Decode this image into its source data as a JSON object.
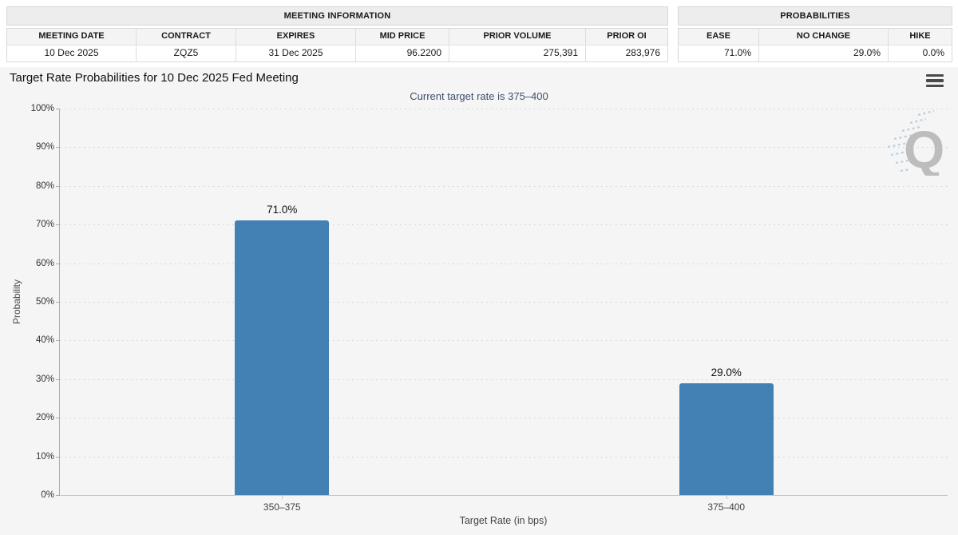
{
  "meeting_info": {
    "title": "MEETING INFORMATION",
    "columns": [
      "MEETING DATE",
      "CONTRACT",
      "EXPIRES",
      "MID PRICE",
      "PRIOR VOLUME",
      "PRIOR OI"
    ],
    "values": [
      "10 Dec 2025",
      "ZQZ5",
      "31 Dec 2025",
      "96.2200",
      "275,391",
      "283,976"
    ]
  },
  "probabilities": {
    "title": "PROBABILITIES",
    "columns": [
      "EASE",
      "NO CHANGE",
      "HIKE"
    ],
    "values": [
      "71.0%",
      "29.0%",
      "0.0%"
    ]
  },
  "chart_header": {
    "title": "Target Rate Probabilities for 10 Dec 2025 Fed Meeting",
    "subtitle": "Current target rate is 375–400",
    "menu_icon": "hamburger-icon",
    "watermark_letter": "Q"
  },
  "chart_data": {
    "type": "bar",
    "categories": [
      "350–375",
      "375–400"
    ],
    "values": [
      71.0,
      29.0
    ],
    "value_labels": [
      "71.0%",
      "29.0%"
    ],
    "title": "Target Rate Probabilities for 10 Dec 2025 Fed Meeting",
    "subtitle": "Current target rate is 375–400",
    "xlabel": "Target Rate (in bps)",
    "ylabel": "Probability",
    "ylim": [
      0,
      100
    ],
    "ytick_step": 10,
    "ytick_suffix": "%",
    "grid": "dotted-horizontal",
    "legend": "none",
    "bar_color": "#4381b5"
  },
  "colors": {
    "bar": "#4381b5",
    "subtitle_text": "#3e4d6e",
    "chart_background": "#f5f5f5",
    "table_title_background": "#ededed",
    "border": "#d8d8d8"
  }
}
